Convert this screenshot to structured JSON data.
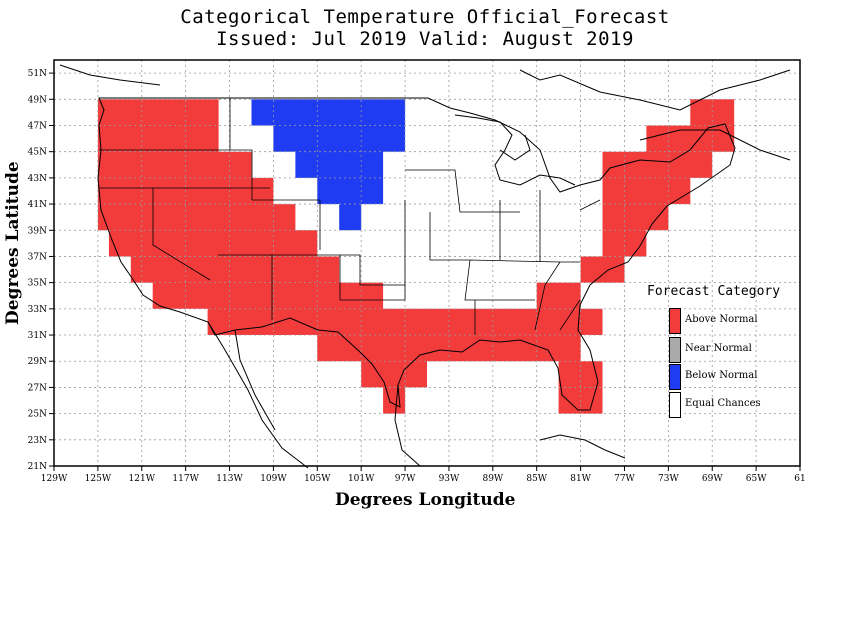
{
  "title_line1": "Categorical Temperature Official_Forecast",
  "title_line2": "Issued: Jul 2019 Valid: August 2019",
  "colors": {
    "above": "#f23c3c",
    "near": "#aaaaaa",
    "below": "#1f3cf2",
    "equal": "#ffffff",
    "grid": "#9a9a9a",
    "border": "#000000"
  },
  "chart_data": {
    "type": "heatmap",
    "xlabel": "Degrees Longitude",
    "ylabel": "Degrees Latitude",
    "x_range": [
      -129,
      -61
    ],
    "y_range": [
      21,
      52
    ],
    "x_ticks": [
      {
        "value": -129,
        "label": "129W"
      },
      {
        "value": -125,
        "label": "125W"
      },
      {
        "value": -121,
        "label": "121W"
      },
      {
        "value": -117,
        "label": "117W"
      },
      {
        "value": -113,
        "label": "113W"
      },
      {
        "value": -109,
        "label": "109W"
      },
      {
        "value": -105,
        "label": "105W"
      },
      {
        "value": -101,
        "label": "101W"
      },
      {
        "value": -97,
        "label": "97W"
      },
      {
        "value": -93,
        "label": "93W"
      },
      {
        "value": -89,
        "label": "89W"
      },
      {
        "value": -85,
        "label": "85W"
      },
      {
        "value": -81,
        "label": "81W"
      },
      {
        "value": -77,
        "label": "77W"
      },
      {
        "value": -73,
        "label": "73W"
      },
      {
        "value": -69,
        "label": "69W"
      },
      {
        "value": -65,
        "label": "65W"
      },
      {
        "value": -61,
        "label": "61"
      }
    ],
    "y_ticks": [
      {
        "value": 21,
        "label": "21N"
      },
      {
        "value": 23,
        "label": "23N"
      },
      {
        "value": 25,
        "label": "25N"
      },
      {
        "value": 27,
        "label": "27N"
      },
      {
        "value": 29,
        "label": "29N"
      },
      {
        "value": 31,
        "label": "31N"
      },
      {
        "value": 33,
        "label": "33N"
      },
      {
        "value": 35,
        "label": "35N"
      },
      {
        "value": 37,
        "label": "37N"
      },
      {
        "value": 39,
        "label": "39N"
      },
      {
        "value": 41,
        "label": "41N"
      },
      {
        "value": 43,
        "label": "43N"
      },
      {
        "value": 45,
        "label": "45N"
      },
      {
        "value": 47,
        "label": "47N"
      },
      {
        "value": 49,
        "label": "49N"
      },
      {
        "value": 51,
        "label": "51N"
      }
    ],
    "grid": true,
    "legend": {
      "title": "Forecast Category",
      "placement": "right",
      "entries": [
        {
          "key": "above",
          "label": "Above Normal"
        },
        {
          "key": "near",
          "label": "Near Normal"
        },
        {
          "key": "below",
          "label": "Below Normal"
        },
        {
          "key": "equal",
          "label": "Equal Chances"
        }
      ]
    },
    "above_regions": [
      [
        [
          -125,
          49
        ],
        [
          -114,
          49
        ],
        [
          -114,
          45
        ],
        [
          -111,
          45
        ],
        [
          -111,
          43
        ],
        [
          -109,
          43
        ],
        [
          -109,
          41
        ],
        [
          -107,
          41
        ],
        [
          -107,
          39
        ],
        [
          -105,
          39
        ],
        [
          -105,
          37
        ],
        [
          -103,
          37
        ],
        [
          -103,
          35
        ],
        [
          -99,
          35
        ],
        [
          -99,
          33
        ],
        [
          -95,
          33
        ],
        [
          -93,
          33
        ],
        [
          -89,
          33
        ],
        [
          -85,
          33
        ],
        [
          -85,
          35
        ],
        [
          -81,
          35
        ],
        [
          -81,
          33
        ],
        [
          -79,
          33
        ],
        [
          -79,
          31
        ],
        [
          -81,
          31
        ],
        [
          -81,
          29
        ],
        [
          -79,
          29
        ],
        [
          -79,
          25
        ],
        [
          -83,
          25
        ],
        [
          -83,
          29
        ],
        [
          -85,
          29
        ],
        [
          -89,
          29
        ],
        [
          -93,
          29
        ],
        [
          -95,
          29
        ],
        [
          -95,
          27
        ],
        [
          -97,
          27
        ],
        [
          -97,
          25
        ],
        [
          -99,
          25
        ],
        [
          -99,
          27
        ],
        [
          -101,
          27
        ],
        [
          -101,
          29
        ],
        [
          -105,
          29
        ],
        [
          -105,
          31
        ],
        [
          -109,
          31
        ],
        [
          -111,
          31
        ],
        [
          -115,
          31
        ],
        [
          -115,
          33
        ],
        [
          -120,
          33
        ],
        [
          -120,
          35
        ],
        [
          -122,
          35
        ],
        [
          -122,
          37
        ],
        [
          -124,
          37
        ],
        [
          -124,
          39
        ],
        [
          -125,
          39
        ]
      ],
      [
        [
          -79,
          45
        ],
        [
          -75,
          45
        ],
        [
          -75,
          47
        ],
        [
          -71,
          47
        ],
        [
          -71,
          49
        ],
        [
          -67,
          49
        ],
        [
          -67,
          45
        ],
        [
          -69,
          45
        ],
        [
          -69,
          43
        ],
        [
          -71,
          43
        ],
        [
          -71,
          41
        ],
        [
          -73,
          41
        ],
        [
          -73,
          39
        ],
        [
          -75,
          39
        ],
        [
          -75,
          37
        ],
        [
          -77,
          37
        ],
        [
          -77,
          35
        ],
        [
          -81,
          35
        ],
        [
          -81,
          37
        ],
        [
          -79,
          37
        ],
        [
          -79,
          39
        ],
        [
          -79,
          41
        ],
        [
          -79,
          43
        ]
      ]
    ],
    "below_regions": [
      [
        [
          -111,
          49
        ],
        [
          -97,
          49
        ],
        [
          -97,
          45
        ],
        [
          -99,
          45
        ],
        [
          -99,
          41
        ],
        [
          -101,
          41
        ],
        [
          -101,
          39
        ],
        [
          -103,
          39
        ],
        [
          -103,
          41
        ],
        [
          -105,
          41
        ],
        [
          -105,
          43
        ],
        [
          -107,
          43
        ],
        [
          -107,
          45
        ],
        [
          -109,
          45
        ],
        [
          -109,
          47
        ],
        [
          -111,
          47
        ]
      ]
    ]
  },
  "labels": {
    "legend_title": "Forecast Category",
    "legend_above": "Above Normal",
    "legend_near": "Near Normal",
    "legend_below": "Below Normal",
    "legend_equal": "Equal Chances"
  }
}
